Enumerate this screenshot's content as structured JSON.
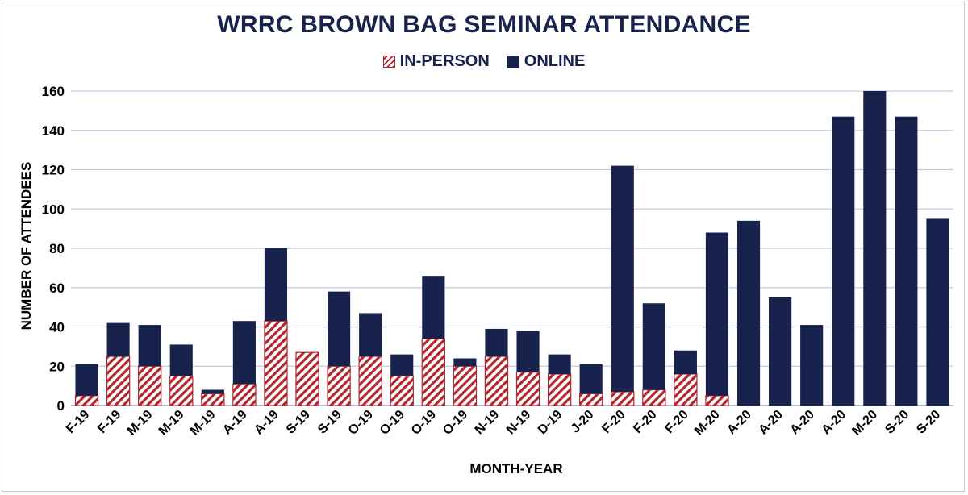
{
  "chart_data": {
    "type": "bar",
    "stacked": true,
    "title": "WRRC BROWN BAG SEMINAR ATTENDANCE",
    "xlabel": "MONTH-YEAR",
    "ylabel": "NUMBER OF ATTENDEES",
    "ylim": [
      0,
      160
    ],
    "yticks": [
      0,
      20,
      40,
      60,
      80,
      100,
      120,
      140,
      160
    ],
    "grid": true,
    "legend_position": "top",
    "categories": [
      "F-19",
      "F-19",
      "M-19",
      "M-19",
      "M-19",
      "A-19",
      "A-19",
      "S-19",
      "S-19",
      "O-19",
      "O-19",
      "O-19",
      "O-19",
      "N-19",
      "N-19",
      "D-19",
      "J-20",
      "F-20",
      "F-20",
      "F-20",
      "M-20",
      "A-20",
      "A-20",
      "A-20",
      "A-20",
      "M-20",
      "S-20",
      "S-20"
    ],
    "series": [
      {
        "name": "IN-PERSON",
        "color": "#b3262e",
        "pattern": "diagonal-hatch",
        "values": [
          5,
          25,
          20,
          15,
          6,
          11,
          43,
          27,
          20,
          25,
          15,
          34,
          20,
          25,
          17,
          16,
          6,
          7,
          8,
          16,
          5,
          0,
          0,
          0,
          0,
          0,
          0,
          0
        ]
      },
      {
        "name": "ONLINE",
        "color": "#17224d",
        "values": [
          16,
          17,
          21,
          16,
          2,
          32,
          37,
          0,
          38,
          22,
          11,
          32,
          4,
          14,
          21,
          10,
          15,
          115,
          44,
          12,
          83,
          94,
          55,
          41,
          147,
          160,
          147,
          95
        ]
      }
    ]
  }
}
